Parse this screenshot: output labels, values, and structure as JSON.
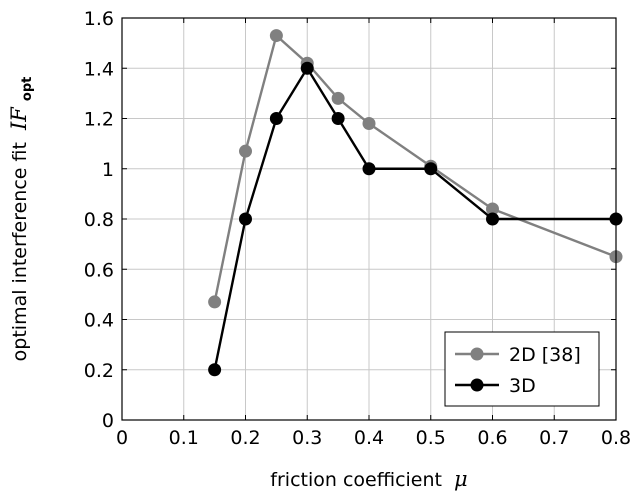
{
  "chart_data": {
    "type": "line",
    "xlabel": "friction coefficient",
    "xlabel_symbol": "μ",
    "ylabel": "optimal interference fit",
    "ylabel_symbol": "IF",
    "ylabel_subscript": "opt",
    "xlim": [
      0,
      0.8
    ],
    "ylim": [
      0,
      1.6
    ],
    "xticks": [
      "0",
      "0.1",
      "0.2",
      "0.3",
      "0.4",
      "0.5",
      "0.6",
      "0.7",
      "0.8"
    ],
    "yticks": [
      "0",
      "0.2",
      "0.4",
      "0.6",
      "0.8",
      "1",
      "1.2",
      "1.4",
      "1.6"
    ],
    "grid": true,
    "legend_position": "bottom-right",
    "series": [
      {
        "name": "2D [38]",
        "color": "#808080",
        "points": [
          [
            0.15,
            0.47
          ],
          [
            0.2,
            1.07
          ],
          [
            0.25,
            1.53
          ],
          [
            0.3,
            1.42
          ],
          [
            0.35,
            1.28
          ],
          [
            0.4,
            1.18
          ],
          [
            0.5,
            1.01
          ],
          [
            0.6,
            0.84
          ],
          [
            0.8,
            0.65
          ]
        ]
      },
      {
        "name": "3D",
        "color": "#000000",
        "points": [
          [
            0.15,
            0.2
          ],
          [
            0.2,
            0.8
          ],
          [
            0.25,
            1.2
          ],
          [
            0.3,
            1.4
          ],
          [
            0.35,
            1.2
          ],
          [
            0.4,
            1.0
          ],
          [
            0.5,
            1.0
          ],
          [
            0.6,
            0.8
          ],
          [
            0.8,
            0.8
          ]
        ]
      }
    ]
  }
}
